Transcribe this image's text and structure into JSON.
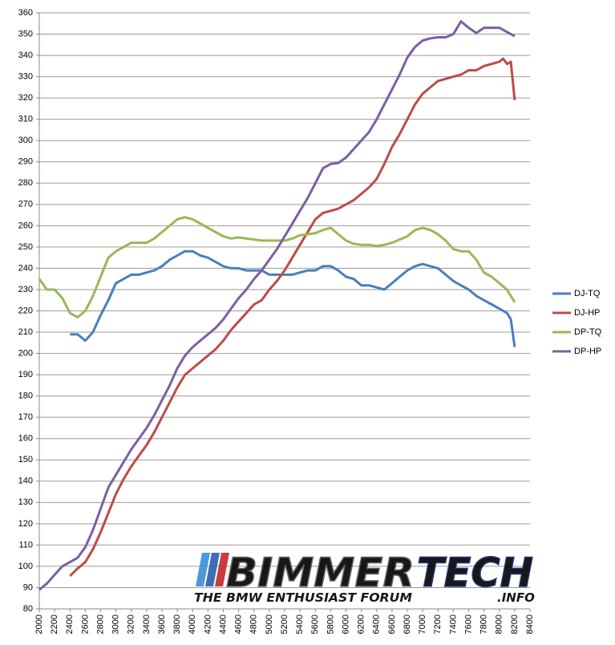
{
  "chart_data": {
    "type": "line",
    "xlim": [
      2000,
      8400
    ],
    "xticks": [
      2000,
      2200,
      2400,
      2600,
      2800,
      3000,
      3200,
      3400,
      3600,
      3800,
      4000,
      4200,
      4400,
      4600,
      4800,
      5000,
      5200,
      5400,
      5600,
      5800,
      6000,
      6200,
      6400,
      6600,
      6800,
      7000,
      7200,
      7400,
      7600,
      7800,
      8000,
      8200,
      8400
    ],
    "ylim": [
      80,
      360
    ],
    "yticks": [
      80,
      90,
      100,
      110,
      120,
      130,
      140,
      150,
      160,
      170,
      180,
      190,
      200,
      210,
      220,
      230,
      240,
      250,
      260,
      270,
      280,
      290,
      300,
      310,
      320,
      330,
      340,
      350,
      360
    ],
    "grid": true,
    "legend": "right",
    "watermark": {
      "brand_parts": [
        "BIMMER",
        "TECH"
      ],
      "tagline": "THE BMW ENTHUSIAST FORUM",
      "suffix": ".INFO"
    },
    "series": [
      {
        "name": "DJ-TQ",
        "color": "#4a7ebb",
        "x": [
          2400,
          2500,
          2600,
          2700,
          2800,
          2900,
          3000,
          3100,
          3200,
          3300,
          3400,
          3500,
          3600,
          3700,
          3800,
          3900,
          4000,
          4100,
          4200,
          4300,
          4400,
          4500,
          4600,
          4700,
          4800,
          4900,
          5000,
          5100,
          5200,
          5300,
          5400,
          5500,
          5600,
          5700,
          5800,
          5900,
          6000,
          6100,
          6200,
          6300,
          6400,
          6500,
          6600,
          6700,
          6800,
          6900,
          7000,
          7100,
          7200,
          7300,
          7400,
          7500,
          7600,
          7700,
          7800,
          7900,
          8000,
          8100,
          8150,
          8200
        ],
        "values": [
          209,
          209,
          206,
          210,
          218,
          225,
          233,
          235,
          237,
          237,
          238,
          239,
          241,
          244,
          246,
          248,
          248,
          246,
          245,
          243,
          241,
          240,
          240,
          239,
          239,
          239,
          237,
          237,
          237,
          237,
          238,
          239,
          239,
          241,
          241,
          239,
          236,
          235,
          232,
          232,
          231,
          230,
          233,
          236,
          239,
          241,
          242,
          241,
          240,
          237,
          234,
          232,
          230,
          227,
          225,
          223,
          221,
          219,
          216,
          203
        ]
      },
      {
        "name": "DJ-HP",
        "color": "#be4b48",
        "x": [
          2400,
          2500,
          2600,
          2700,
          2800,
          2900,
          3000,
          3100,
          3200,
          3300,
          3400,
          3500,
          3600,
          3700,
          3800,
          3900,
          4000,
          4100,
          4200,
          4300,
          4400,
          4500,
          4600,
          4700,
          4800,
          4900,
          5000,
          5100,
          5200,
          5300,
          5400,
          5500,
          5600,
          5700,
          5800,
          5900,
          6000,
          6100,
          6200,
          6300,
          6400,
          6500,
          6600,
          6700,
          6800,
          6900,
          7000,
          7100,
          7200,
          7300,
          7400,
          7500,
          7600,
          7700,
          7800,
          7900,
          8000,
          8050,
          8100,
          8150,
          8200
        ],
        "values": [
          95.5,
          99,
          102,
          108,
          116,
          125,
          134,
          141,
          147,
          152,
          157,
          163,
          170,
          177,
          184,
          190,
          193,
          196,
          199,
          202,
          206,
          211,
          215,
          219,
          223,
          225,
          230,
          234,
          239,
          245,
          251,
          257,
          263,
          266,
          267,
          268,
          270,
          272,
          275,
          278,
          282,
          289,
          297,
          303,
          310,
          317,
          322,
          325,
          328,
          329,
          330,
          331,
          333,
          333,
          335,
          336,
          337,
          338.5,
          336,
          337,
          319
        ]
      },
      {
        "name": "DP-TQ",
        "color": "#98b954",
        "x": [
          2000,
          2100,
          2200,
          2300,
          2400,
          2500,
          2600,
          2700,
          2800,
          2900,
          3000,
          3100,
          3200,
          3300,
          3400,
          3500,
          3600,
          3700,
          3800,
          3900,
          4000,
          4100,
          4200,
          4300,
          4400,
          4500,
          4600,
          4700,
          4800,
          4900,
          5000,
          5100,
          5200,
          5300,
          5400,
          5500,
          5600,
          5700,
          5800,
          5900,
          6000,
          6100,
          6200,
          6300,
          6400,
          6500,
          6600,
          6700,
          6800,
          6900,
          7000,
          7100,
          7200,
          7300,
          7400,
          7500,
          7600,
          7700,
          7800,
          7900,
          8000,
          8100,
          8200
        ],
        "values": [
          235,
          230,
          230,
          226,
          219,
          217,
          220,
          227,
          236,
          245,
          248,
          250,
          252,
          252,
          252,
          254,
          257,
          260,
          263,
          264,
          263,
          261,
          259,
          257,
          255,
          254,
          254.5,
          254,
          253.5,
          253,
          253,
          253,
          253,
          254,
          255.5,
          256,
          256.5,
          258,
          259,
          256,
          253,
          251.5,
          251,
          251,
          250.5,
          251,
          252,
          253.5,
          255,
          258,
          259,
          258,
          256,
          253,
          249,
          248,
          248,
          244,
          238,
          236,
          233,
          230,
          224
        ]
      },
      {
        "name": "DP-HP",
        "color": "#7d5fa0",
        "x": [
          2000,
          2100,
          2200,
          2300,
          2400,
          2500,
          2600,
          2700,
          2800,
          2900,
          3000,
          3100,
          3200,
          3300,
          3400,
          3500,
          3600,
          3700,
          3800,
          3900,
          4000,
          4100,
          4200,
          4300,
          4400,
          4500,
          4600,
          4700,
          4800,
          4900,
          5000,
          5100,
          5200,
          5300,
          5400,
          5500,
          5600,
          5700,
          5800,
          5900,
          6000,
          6100,
          6200,
          6300,
          6400,
          6500,
          6600,
          6700,
          6800,
          6900,
          7000,
          7100,
          7200,
          7300,
          7400,
          7500,
          7600,
          7700,
          7800,
          7900,
          8000,
          8100,
          8200
        ],
        "values": [
          89,
          92,
          96,
          100,
          102,
          104,
          109,
          117,
          127,
          137,
          143,
          149,
          155,
          160,
          165,
          171,
          178,
          185,
          193,
          199,
          203,
          206,
          209,
          212,
          216,
          221,
          226,
          230,
          235,
          239,
          244,
          249,
          255,
          261,
          267,
          273,
          280,
          287,
          289,
          289.5,
          292,
          296,
          300,
          304,
          310,
          317,
          324,
          331,
          339,
          344,
          347,
          348,
          348.5,
          348.5,
          350,
          356,
          353,
          350.5,
          353,
          353,
          353,
          351,
          349
        ]
      }
    ]
  }
}
